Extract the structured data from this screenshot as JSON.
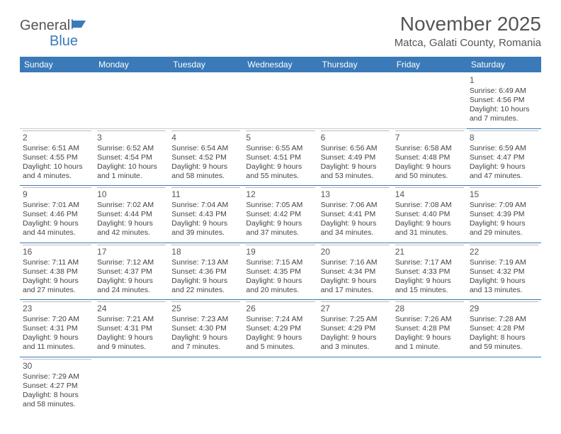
{
  "logo": {
    "part1": "General",
    "part2": "Blue"
  },
  "title": "November 2025",
  "location": "Matca, Galati County, Romania",
  "colors": {
    "header_bg": "#3a7ab8",
    "header_text": "#ffffff",
    "text": "#444444",
    "rule": "#3a7ab8"
  },
  "dayNames": [
    "Sunday",
    "Monday",
    "Tuesday",
    "Wednesday",
    "Thursday",
    "Friday",
    "Saturday"
  ],
  "weeks": [
    [
      null,
      null,
      null,
      null,
      null,
      null,
      {
        "n": "1",
        "sr": "Sunrise: 6:49 AM",
        "ss": "Sunset: 4:56 PM",
        "dl": "Daylight: 10 hours and 7 minutes."
      }
    ],
    [
      {
        "n": "2",
        "sr": "Sunrise: 6:51 AM",
        "ss": "Sunset: 4:55 PM",
        "dl": "Daylight: 10 hours and 4 minutes."
      },
      {
        "n": "3",
        "sr": "Sunrise: 6:52 AM",
        "ss": "Sunset: 4:54 PM",
        "dl": "Daylight: 10 hours and 1 minute."
      },
      {
        "n": "4",
        "sr": "Sunrise: 6:54 AM",
        "ss": "Sunset: 4:52 PM",
        "dl": "Daylight: 9 hours and 58 minutes."
      },
      {
        "n": "5",
        "sr": "Sunrise: 6:55 AM",
        "ss": "Sunset: 4:51 PM",
        "dl": "Daylight: 9 hours and 55 minutes."
      },
      {
        "n": "6",
        "sr": "Sunrise: 6:56 AM",
        "ss": "Sunset: 4:49 PM",
        "dl": "Daylight: 9 hours and 53 minutes."
      },
      {
        "n": "7",
        "sr": "Sunrise: 6:58 AM",
        "ss": "Sunset: 4:48 PM",
        "dl": "Daylight: 9 hours and 50 minutes."
      },
      {
        "n": "8",
        "sr": "Sunrise: 6:59 AM",
        "ss": "Sunset: 4:47 PM",
        "dl": "Daylight: 9 hours and 47 minutes."
      }
    ],
    [
      {
        "n": "9",
        "sr": "Sunrise: 7:01 AM",
        "ss": "Sunset: 4:46 PM",
        "dl": "Daylight: 9 hours and 44 minutes."
      },
      {
        "n": "10",
        "sr": "Sunrise: 7:02 AM",
        "ss": "Sunset: 4:44 PM",
        "dl": "Daylight: 9 hours and 42 minutes."
      },
      {
        "n": "11",
        "sr": "Sunrise: 7:04 AM",
        "ss": "Sunset: 4:43 PM",
        "dl": "Daylight: 9 hours and 39 minutes."
      },
      {
        "n": "12",
        "sr": "Sunrise: 7:05 AM",
        "ss": "Sunset: 4:42 PM",
        "dl": "Daylight: 9 hours and 37 minutes."
      },
      {
        "n": "13",
        "sr": "Sunrise: 7:06 AM",
        "ss": "Sunset: 4:41 PM",
        "dl": "Daylight: 9 hours and 34 minutes."
      },
      {
        "n": "14",
        "sr": "Sunrise: 7:08 AM",
        "ss": "Sunset: 4:40 PM",
        "dl": "Daylight: 9 hours and 31 minutes."
      },
      {
        "n": "15",
        "sr": "Sunrise: 7:09 AM",
        "ss": "Sunset: 4:39 PM",
        "dl": "Daylight: 9 hours and 29 minutes."
      }
    ],
    [
      {
        "n": "16",
        "sr": "Sunrise: 7:11 AM",
        "ss": "Sunset: 4:38 PM",
        "dl": "Daylight: 9 hours and 27 minutes."
      },
      {
        "n": "17",
        "sr": "Sunrise: 7:12 AM",
        "ss": "Sunset: 4:37 PM",
        "dl": "Daylight: 9 hours and 24 minutes."
      },
      {
        "n": "18",
        "sr": "Sunrise: 7:13 AM",
        "ss": "Sunset: 4:36 PM",
        "dl": "Daylight: 9 hours and 22 minutes."
      },
      {
        "n": "19",
        "sr": "Sunrise: 7:15 AM",
        "ss": "Sunset: 4:35 PM",
        "dl": "Daylight: 9 hours and 20 minutes."
      },
      {
        "n": "20",
        "sr": "Sunrise: 7:16 AM",
        "ss": "Sunset: 4:34 PM",
        "dl": "Daylight: 9 hours and 17 minutes."
      },
      {
        "n": "21",
        "sr": "Sunrise: 7:17 AM",
        "ss": "Sunset: 4:33 PM",
        "dl": "Daylight: 9 hours and 15 minutes."
      },
      {
        "n": "22",
        "sr": "Sunrise: 7:19 AM",
        "ss": "Sunset: 4:32 PM",
        "dl": "Daylight: 9 hours and 13 minutes."
      }
    ],
    [
      {
        "n": "23",
        "sr": "Sunrise: 7:20 AM",
        "ss": "Sunset: 4:31 PM",
        "dl": "Daylight: 9 hours and 11 minutes."
      },
      {
        "n": "24",
        "sr": "Sunrise: 7:21 AM",
        "ss": "Sunset: 4:31 PM",
        "dl": "Daylight: 9 hours and 9 minutes."
      },
      {
        "n": "25",
        "sr": "Sunrise: 7:23 AM",
        "ss": "Sunset: 4:30 PM",
        "dl": "Daylight: 9 hours and 7 minutes."
      },
      {
        "n": "26",
        "sr": "Sunrise: 7:24 AM",
        "ss": "Sunset: 4:29 PM",
        "dl": "Daylight: 9 hours and 5 minutes."
      },
      {
        "n": "27",
        "sr": "Sunrise: 7:25 AM",
        "ss": "Sunset: 4:29 PM",
        "dl": "Daylight: 9 hours and 3 minutes."
      },
      {
        "n": "28",
        "sr": "Sunrise: 7:26 AM",
        "ss": "Sunset: 4:28 PM",
        "dl": "Daylight: 9 hours and 1 minute."
      },
      {
        "n": "29",
        "sr": "Sunrise: 7:28 AM",
        "ss": "Sunset: 4:28 PM",
        "dl": "Daylight: 8 hours and 59 minutes."
      }
    ],
    [
      {
        "n": "30",
        "sr": "Sunrise: 7:29 AM",
        "ss": "Sunset: 4:27 PM",
        "dl": "Daylight: 8 hours and 58 minutes."
      },
      null,
      null,
      null,
      null,
      null,
      null
    ]
  ]
}
